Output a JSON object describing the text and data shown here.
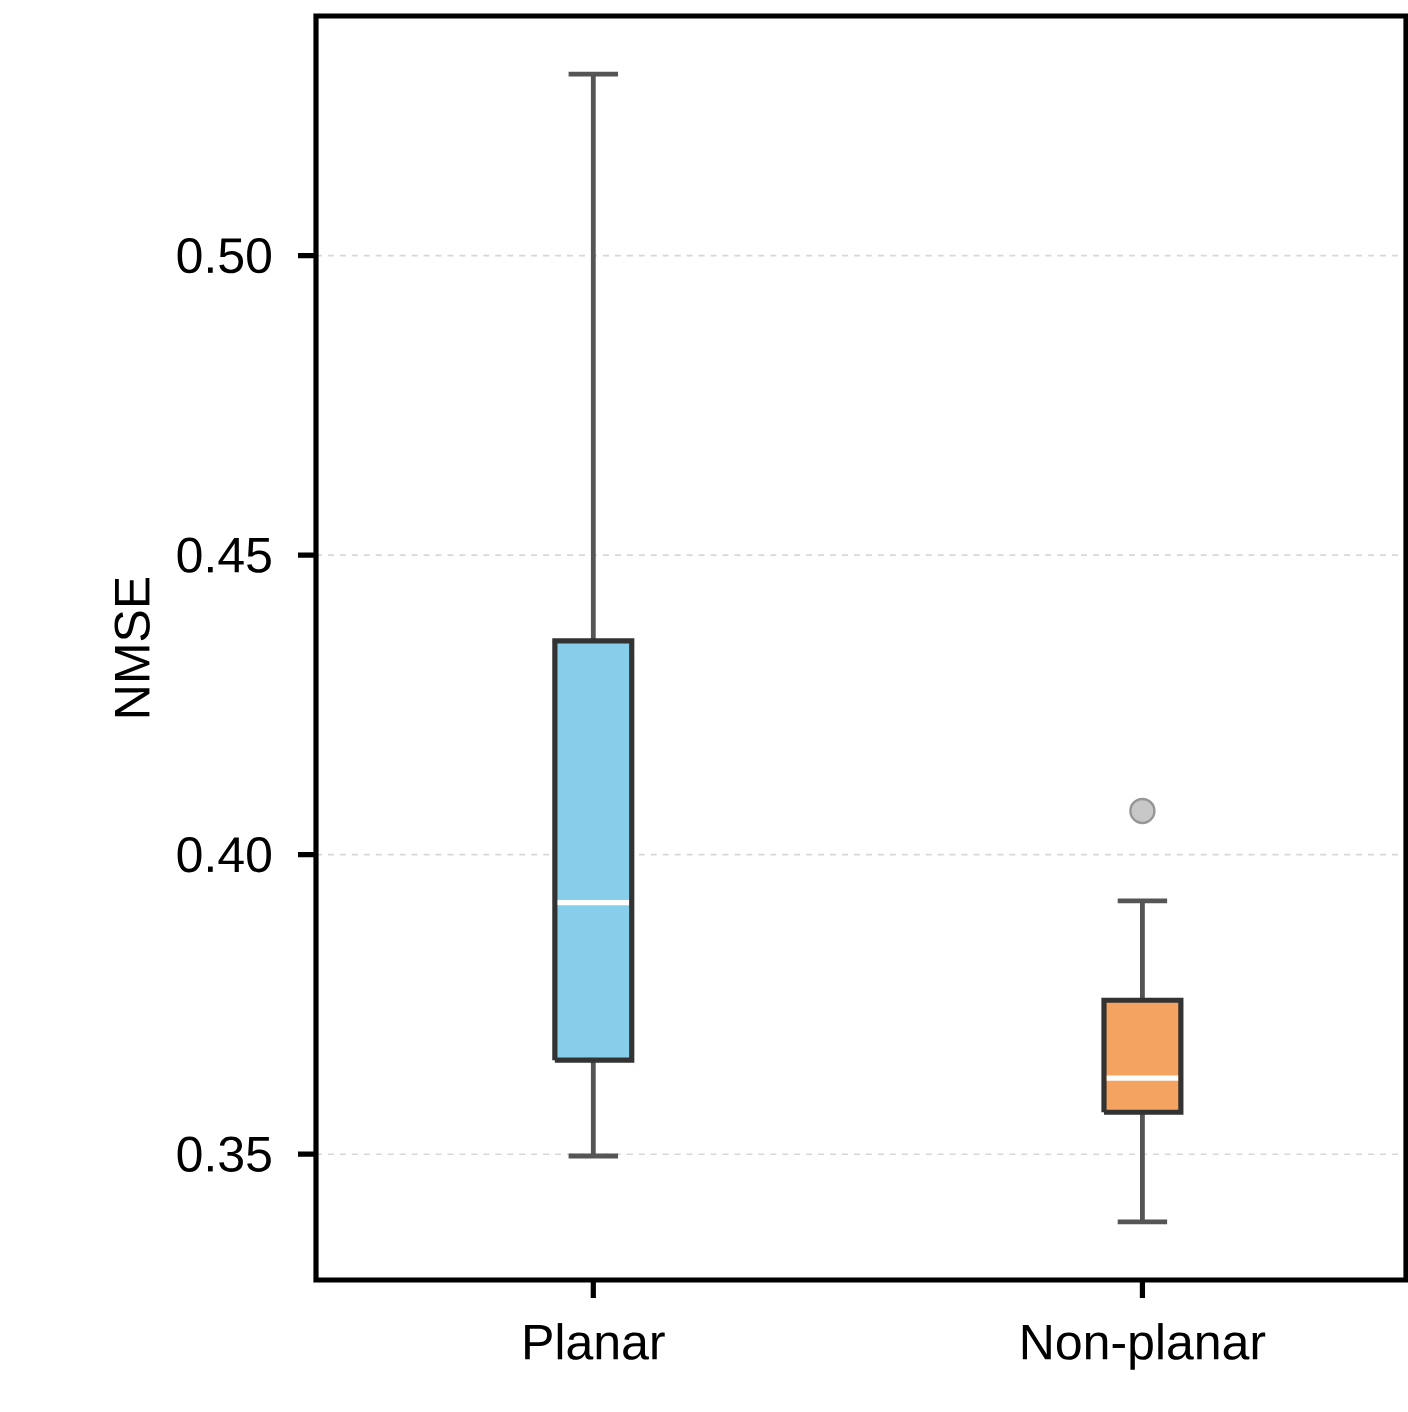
{
  "chart_data": {
    "type": "box",
    "ylabel": "NMSE",
    "categories": [
      "Planar",
      "Non-planar"
    ],
    "colors": [
      "#87ceeb",
      "#f4a460"
    ],
    "boxes": [
      {
        "low": 0.3497,
        "q1": 0.3657,
        "median": 0.392,
        "q3": 0.4357,
        "high": 0.5303
      },
      {
        "low": 0.3387,
        "q1": 0.357,
        "median": 0.3627,
        "q3": 0.3757,
        "high": 0.3923,
        "outliers": [
          0.4073
        ]
      }
    ],
    "ylim": [
      0.329,
      0.54
    ],
    "yticks": [
      {
        "value": 0.35,
        "label": "0.35"
      },
      {
        "value": 0.4,
        "label": "0.40"
      },
      {
        "value": 0.45,
        "label": "0.45"
      },
      {
        "value": 0.5,
        "label": "0.50"
      }
    ],
    "grid": "y"
  }
}
